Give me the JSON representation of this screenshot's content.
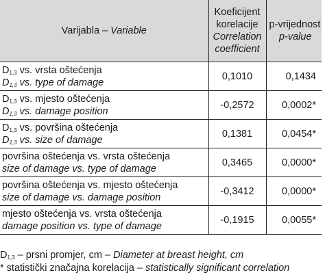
{
  "table": {
    "header": {
      "variable": {
        "hr": "Varijabla – ",
        "en": "Variable"
      },
      "correlation": {
        "hr1": "Koeficijent",
        "hr2": "korelacije",
        "en1": "Correlation",
        "en2": "coefficient"
      },
      "pvalue": {
        "hr": "p-vrijednost",
        "en": "p-value"
      }
    },
    "rows": [
      {
        "hr_pre": "D",
        "hr_sub": "1,3",
        "hr_post": " vs. vrsta oštećenja",
        "en_pre": "D",
        "en_sub": "1,3",
        "en_post": " vs. type of damage",
        "corr": "0,1010",
        "p": "0,1434"
      },
      {
        "hr_pre": "D",
        "hr_sub": "1,3",
        "hr_post": " vs. mjesto oštećenja",
        "en_pre": "D",
        "en_sub": "1,3",
        "en_post": " vs. damage position",
        "corr": "-0,2572",
        "p": "0,0002*"
      },
      {
        "hr_pre": "D",
        "hr_sub": "1,3",
        "hr_post": " vs. površina oštećenja",
        "en_pre": "D",
        "en_sub": "1,3",
        "en_post": " vs. size of damage",
        "corr": "0,1381",
        "p": "0,0454*"
      },
      {
        "hr_pre": "površina oštećenja vs. vrsta oštećenja",
        "en_pre": "size of damage vs. type of damage",
        "corr": "0,3465",
        "p": "0,0000*"
      },
      {
        "hr_pre": "površina oštećenja vs. mjesto oštećenja",
        "en_pre": "size of damage vs. damage position",
        "corr": "-0,3412",
        "p": "0,0000*"
      },
      {
        "hr_pre": "mjesto oštećenja vs. vrsta oštećenja",
        "en_pre": "damage position vs. type of damage",
        "corr": "-0,1915",
        "p": "0,0055*"
      }
    ]
  },
  "notes": {
    "d_pre": "D",
    "d_sub": "1,3",
    "d_hr": " – prsni promjer, cm – ",
    "d_en": "Diameter at breast height, cm",
    "sig_hr": "* statistički značajna korelacija – ",
    "sig_en": "statistically significant correlation"
  }
}
